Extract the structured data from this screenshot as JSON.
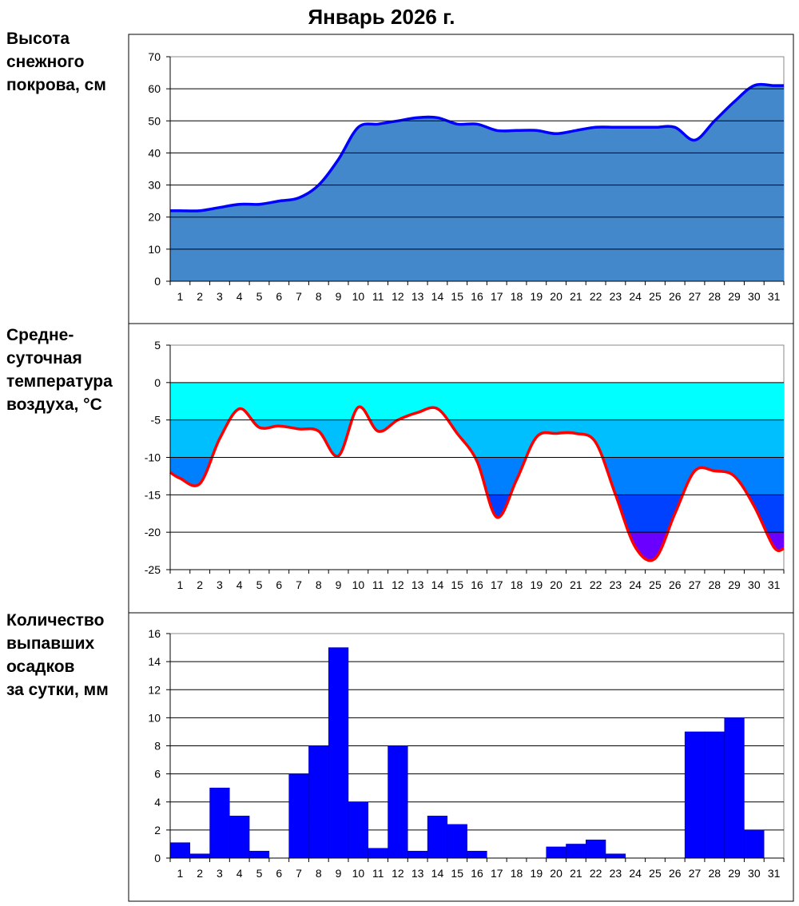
{
  "title": "Январь 2026 г.",
  "labels": {
    "snow": [
      "Высота",
      "снежного",
      "покрова, см"
    ],
    "temp": [
      "Средне-",
      "суточная",
      "температура",
      "воздуха, °С"
    ],
    "precip": [
      "Количество",
      "выпавших",
      "осадков",
      "за сутки, мм"
    ]
  },
  "colors": {
    "snow_fill": "#4488CC",
    "snow_line": "#0000FF",
    "temp_line": "#FF0000",
    "temp_bands": [
      "#00FFFF",
      "#00BFFF",
      "#0080FF",
      "#0040FF",
      "#6A00FF"
    ],
    "precip_bar": "#0000FF",
    "grid": "#000000"
  },
  "chart_data": [
    {
      "type": "area",
      "title": "Высота снежного покрова, см",
      "x": [
        "1",
        "2",
        "3",
        "4",
        "5",
        "6",
        "7",
        "8",
        "9",
        "10",
        "11",
        "12",
        "13",
        "14",
        "15",
        "16",
        "17",
        "18",
        "19",
        "20",
        "21",
        "22",
        "23",
        "24",
        "25",
        "26",
        "27",
        "28",
        "29",
        "30",
        "31"
      ],
      "values": [
        22,
        22,
        23,
        24,
        24,
        25,
        26,
        30,
        38,
        48,
        49,
        50,
        51,
        51,
        49,
        49,
        47,
        47,
        47,
        46,
        47,
        48,
        48,
        48,
        48,
        48,
        44,
        50,
        56,
        61,
        61
      ],
      "ylim": [
        0,
        70
      ],
      "yticks": [
        0,
        10,
        20,
        30,
        40,
        50,
        60,
        70
      ],
      "grid": true
    },
    {
      "type": "line",
      "title": "Среднесуточная температура воздуха, °С",
      "x": [
        "1",
        "2",
        "3",
        "4",
        "5",
        "6",
        "7",
        "8",
        "9",
        "10",
        "11",
        "12",
        "13",
        "14",
        "15",
        "16",
        "17",
        "18",
        "19",
        "20",
        "21",
        "22",
        "23",
        "24",
        "25",
        "26",
        "27",
        "28",
        "29",
        "30",
        "31"
      ],
      "values": [
        -12.8,
        -13.5,
        -7.5,
        -3.5,
        -6.0,
        -5.8,
        -6.2,
        -6.5,
        -9.8,
        -3.3,
        -6.5,
        -5.0,
        -4.0,
        -3.5,
        -6.8,
        -10.5,
        -18.0,
        -13.0,
        -7.3,
        -6.8,
        -6.8,
        -8.0,
        -15.0,
        -22.0,
        -23.5,
        -17.5,
        -11.8,
        -11.8,
        -12.5,
        -16.5,
        -22.0
      ],
      "ylim": [
        -25,
        5
      ],
      "yticks": [
        -25,
        -20,
        -15,
        -10,
        -5,
        0,
        5
      ],
      "grid": true
    },
    {
      "type": "bar",
      "title": "Количество выпавших осадков за сутки, мм",
      "categories": [
        "1",
        "2",
        "3",
        "4",
        "5",
        "6",
        "7",
        "8",
        "9",
        "10",
        "11",
        "12",
        "13",
        "14",
        "15",
        "16",
        "17",
        "18",
        "19",
        "20",
        "21",
        "22",
        "23",
        "24",
        "25",
        "26",
        "27",
        "28",
        "29",
        "30",
        "31"
      ],
      "values": [
        1.1,
        0.3,
        5,
        3,
        0.5,
        0,
        6,
        8,
        15,
        4,
        0.7,
        8,
        0.5,
        3,
        2.4,
        0.5,
        0,
        0,
        0,
        0.8,
        1,
        1.3,
        0.3,
        0,
        0,
        0,
        9,
        9,
        10,
        2,
        0
      ],
      "ylim": [
        0,
        16
      ],
      "yticks": [
        0,
        2,
        4,
        6,
        8,
        10,
        12,
        14,
        16
      ],
      "grid": true
    }
  ]
}
